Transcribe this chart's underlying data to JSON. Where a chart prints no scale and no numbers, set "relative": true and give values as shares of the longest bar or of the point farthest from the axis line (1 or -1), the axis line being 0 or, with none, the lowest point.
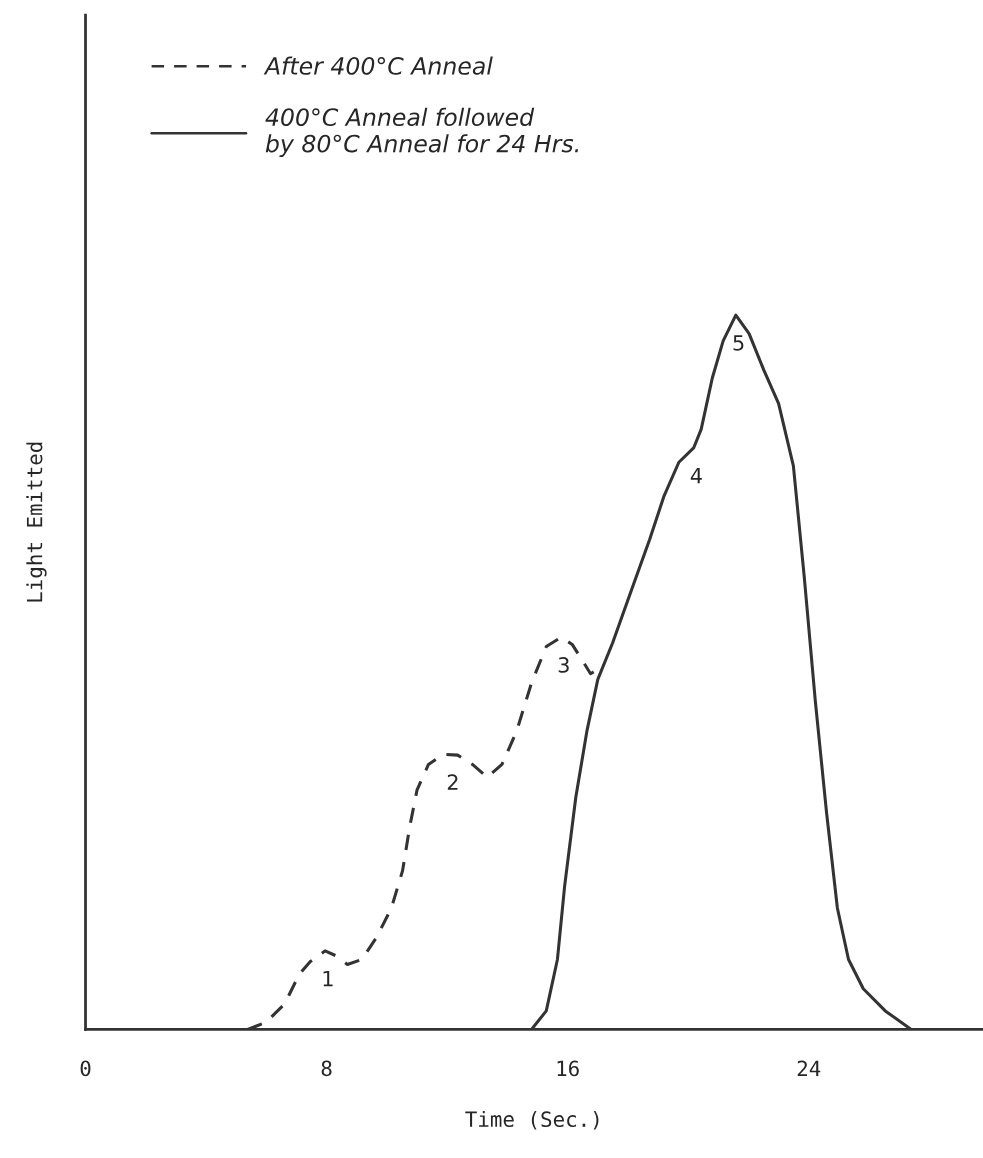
{
  "chart_data": {
    "type": "line",
    "xlabel": "Time (Sec.)",
    "ylabel": "Light Emitted",
    "relative": true,
    "xlim": [
      0,
      29.75
    ],
    "xticks": [
      0,
      8,
      16,
      24
    ],
    "grid": false,
    "legend": "top left",
    "marker": "none",
    "tick_labels": "x",
    "series": [
      {
        "name": "After 400°C Anneal",
        "color": "#333333",
        "line_style": "dashed",
        "x": [
          5.38,
          5.99,
          6.61,
          7.09,
          7.46,
          7.95,
          8.32,
          8.69,
          9.17,
          9.66,
          10.15,
          10.52,
          10.76,
          11.0,
          11.38,
          11.87,
          12.35,
          12.84,
          13.33,
          13.82,
          14.31,
          14.8,
          15.29,
          15.78,
          16.15,
          16.51,
          16.76,
          17.05
        ],
        "values": [
          0,
          0.01,
          0.036,
          0.077,
          0.095,
          0.11,
          0.103,
          0.091,
          0.098,
          0.129,
          0.17,
          0.222,
          0.284,
          0.335,
          0.371,
          0.385,
          0.384,
          0.371,
          0.353,
          0.371,
          0.418,
          0.485,
          0.536,
          0.549,
          0.539,
          0.515,
          0.498,
          0.505
        ]
      },
      {
        "name": "400°C Anneal followed\nby 80°C Anneal for 24 Hrs.",
        "color": "#333333",
        "line_style": "solid",
        "x": [
          14.8,
          15.29,
          15.66,
          15.9,
          16.27,
          16.64,
          17.0,
          17.49,
          18.1,
          18.72,
          19.2,
          19.69,
          20.18,
          20.43,
          20.8,
          21.16,
          21.58,
          22.02,
          22.51,
          23.0,
          23.49,
          23.85,
          24.22,
          24.59,
          24.95,
          25.32,
          25.81,
          26.54,
          27.4
        ],
        "values": [
          0,
          0.026,
          0.098,
          0.201,
          0.325,
          0.418,
          0.49,
          0.541,
          0.613,
          0.686,
          0.747,
          0.794,
          0.814,
          0.84,
          0.912,
          0.964,
          1.0,
          0.974,
          0.923,
          0.876,
          0.789,
          0.634,
          0.459,
          0.304,
          0.17,
          0.098,
          0.057,
          0.026,
          0
        ]
      }
    ],
    "annotations": [
      {
        "text": "1",
        "x": 7.95,
        "y": 0.11
      },
      {
        "text": "2",
        "x": 12.1,
        "y": 0.385
      },
      {
        "text": "3",
        "x": 15.78,
        "y": 0.549
      },
      {
        "text": "4",
        "x": 20.18,
        "y": 0.814
      },
      {
        "text": "5",
        "x": 21.58,
        "y": 1.0
      }
    ]
  }
}
